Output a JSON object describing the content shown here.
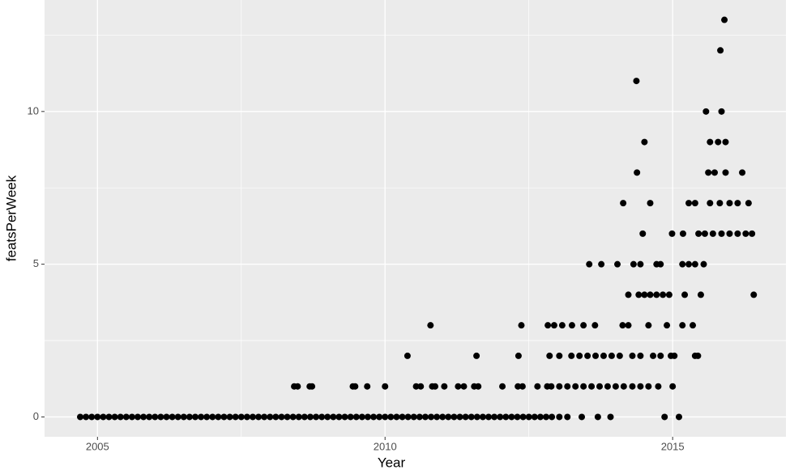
{
  "chart_data": {
    "type": "scatter",
    "x_label": "Year",
    "y_label": "featsPerWeek",
    "color": "#000000",
    "grid": true,
    "xlim": [
      2004.08,
      2016.97
    ],
    "ylim": [
      -0.65,
      13.65
    ],
    "xticks": [
      2005,
      2010,
      2015
    ],
    "yticks": [
      0,
      5,
      10
    ],
    "x": [
      2004.7,
      2004.8,
      2004.9,
      2005.0,
      2005.1,
      2005.2,
      2005.3,
      2005.4,
      2005.5,
      2005.6,
      2005.7,
      2005.8,
      2005.9,
      2006.0,
      2006.1,
      2006.2,
      2006.3,
      2006.4,
      2006.5,
      2006.6,
      2006.7,
      2006.8,
      2006.9,
      2007.0,
      2007.1,
      2007.2,
      2007.3,
      2007.4,
      2007.5,
      2007.6,
      2007.7,
      2007.8,
      2007.9,
      2008.0,
      2008.1,
      2008.2,
      2008.3,
      2008.4,
      2008.5,
      2008.6,
      2008.7,
      2008.8,
      2008.9,
      2009.0,
      2009.1,
      2009.2,
      2009.3,
      2009.4,
      2009.5,
      2009.6,
      2009.7,
      2009.8,
      2009.9,
      2010.0,
      2010.1,
      2010.2,
      2010.3,
      2010.4,
      2010.5,
      2010.6,
      2010.7,
      2010.8,
      2010.9,
      2011.0,
      2011.1,
      2011.2,
      2011.3,
      2011.4,
      2011.5,
      2011.6,
      2011.7,
      2011.8,
      2011.9,
      2012.0,
      2012.1,
      2012.2,
      2012.3,
      2012.4,
      2012.5,
      2012.6,
      2012.7,
      2012.8,
      2012.9,
      2013.03,
      2013.17,
      2013.42,
      2013.7,
      2013.92,
      2014.86,
      2015.11,
      2008.42,
      2008.48,
      2008.69,
      2008.73,
      2009.44,
      2009.48,
      2009.69,
      2010.0,
      2010.54,
      2010.62,
      2010.82,
      2010.87,
      2011.03,
      2011.27,
      2011.37,
      2011.55,
      2011.62,
      2012.04,
      2012.31,
      2012.39,
      2012.65,
      2012.82,
      2012.89,
      2013.03,
      2013.17,
      2013.31,
      2013.45,
      2013.59,
      2013.73,
      2013.87,
      2014.01,
      2014.15,
      2014.3,
      2014.44,
      2014.58,
      2014.75,
      2015.0,
      2010.39,
      2011.59,
      2012.32,
      2012.86,
      2013.03,
      2013.24,
      2013.38,
      2013.52,
      2013.66,
      2013.8,
      2013.94,
      2014.08,
      2014.3,
      2014.44,
      2014.66,
      2014.79,
      2014.97,
      2015.03,
      2015.39,
      2015.44,
      2010.79,
      2012.37,
      2012.83,
      2012.94,
      2013.08,
      2013.25,
      2013.45,
      2013.65,
      2014.13,
      2014.23,
      2014.58,
      2014.9,
      2015.17,
      2015.35,
      2014.23,
      2014.41,
      2014.51,
      2014.61,
      2014.72,
      2014.83,
      2014.94,
      2015.21,
      2015.49,
      2016.41,
      2013.55,
      2013.76,
      2014.04,
      2014.32,
      2014.44,
      2014.72,
      2014.79,
      2015.17,
      2015.28,
      2015.39,
      2015.54,
      2014.48,
      2014.99,
      2015.18,
      2015.45,
      2015.56,
      2015.7,
      2015.85,
      2015.99,
      2016.13,
      2016.27,
      2016.38,
      2014.14,
      2014.61,
      2015.28,
      2015.39,
      2015.65,
      2015.82,
      2015.99,
      2016.13,
      2016.32,
      2014.38,
      2015.62,
      2015.73,
      2015.92,
      2016.21,
      2014.51,
      2015.65,
      2015.79,
      2015.92,
      2015.58,
      2015.85,
      2014.37,
      2015.83,
      2015.9
    ],
    "values": [
      0,
      0,
      0,
      0,
      0,
      0,
      0,
      0,
      0,
      0,
      0,
      0,
      0,
      0,
      0,
      0,
      0,
      0,
      0,
      0,
      0,
      0,
      0,
      0,
      0,
      0,
      0,
      0,
      0,
      0,
      0,
      0,
      0,
      0,
      0,
      0,
      0,
      0,
      0,
      0,
      0,
      0,
      0,
      0,
      0,
      0,
      0,
      0,
      0,
      0,
      0,
      0,
      0,
      0,
      0,
      0,
      0,
      0,
      0,
      0,
      0,
      0,
      0,
      0,
      0,
      0,
      0,
      0,
      0,
      0,
      0,
      0,
      0,
      0,
      0,
      0,
      0,
      0,
      0,
      0,
      0,
      0,
      0,
      0,
      0,
      0,
      0,
      0,
      0,
      0,
      1,
      1,
      1,
      1,
      1,
      1,
      1,
      1,
      1,
      1,
      1,
      1,
      1,
      1,
      1,
      1,
      1,
      1,
      1,
      1,
      1,
      1,
      1,
      1,
      1,
      1,
      1,
      1,
      1,
      1,
      1,
      1,
      1,
      1,
      1,
      1,
      1,
      2,
      2,
      2,
      2,
      2,
      2,
      2,
      2,
      2,
      2,
      2,
      2,
      2,
      2,
      2,
      2,
      2,
      2,
      2,
      2,
      3,
      3,
      3,
      3,
      3,
      3,
      3,
      3,
      3,
      3,
      3,
      3,
      3,
      3,
      4,
      4,
      4,
      4,
      4,
      4,
      4,
      4,
      4,
      4,
      5,
      5,
      5,
      5,
      5,
      5,
      5,
      5,
      5,
      5,
      5,
      6,
      6,
      6,
      6,
      6,
      6,
      6,
      6,
      6,
      6,
      6,
      7,
      7,
      7,
      7,
      7,
      7,
      7,
      7,
      7,
      8,
      8,
      8,
      8,
      8,
      9,
      9,
      9,
      9,
      10,
      10,
      11,
      12,
      13
    ]
  }
}
